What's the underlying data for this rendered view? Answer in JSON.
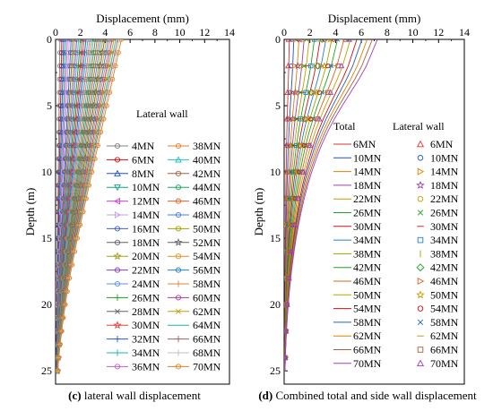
{
  "chart_data": [
    {
      "type": "line",
      "panel": "c",
      "caption_letter": "(c)",
      "caption_text": " lateral wall displacement",
      "xlabel": "Displacement (mm)",
      "ylabel": "Depth (m)",
      "xlim": [
        0,
        14
      ],
      "ylim": [
        0,
        26
      ],
      "y_inverted": true,
      "x_axis_position": "top",
      "xticks": [
        0,
        2,
        4,
        6,
        8,
        10,
        12,
        14
      ],
      "yticks": [
        0,
        5,
        10,
        15,
        20,
        25
      ],
      "grid": false,
      "legend_title": "Lateral wall",
      "legend_columns": 2,
      "legend_placement": "right",
      "depth_points": [
        0,
        1,
        2,
        3,
        4,
        5,
        6,
        7,
        8,
        9,
        10,
        11,
        12,
        13,
        14,
        15,
        16,
        17,
        18,
        19,
        20,
        21,
        22,
        23,
        24,
        25
      ],
      "shape_profile": [
        1.0,
        0.955,
        0.91,
        0.865,
        0.82,
        0.775,
        0.73,
        0.685,
        0.64,
        0.595,
        0.55,
        0.505,
        0.46,
        0.415,
        0.37,
        0.325,
        0.285,
        0.245,
        0.205,
        0.17,
        0.14,
        0.11,
        0.085,
        0.06,
        0.04,
        0.025
      ],
      "series": [
        {
          "name": "4MN",
          "top_displacement": 0.3,
          "color": "#808080",
          "marker": "o"
        },
        {
          "name": "6MN",
          "top_displacement": 0.45,
          "color": "#d01010",
          "marker": "o"
        },
        {
          "name": "8MN",
          "top_displacement": 0.6,
          "color": "#2050d0",
          "marker": "^"
        },
        {
          "name": "10MN",
          "top_displacement": 0.75,
          "color": "#10a080",
          "marker": "v"
        },
        {
          "name": "12MN",
          "top_displacement": 0.9,
          "color": "#d040d0",
          "marker": "<"
        },
        {
          "name": "14MN",
          "top_displacement": 1.05,
          "color": "#c0a0e0",
          "marker": ">"
        },
        {
          "name": "16MN",
          "top_displacement": 1.2,
          "color": "#4060c0",
          "marker": "o"
        },
        {
          "name": "18MN",
          "top_displacement": 1.35,
          "color": "#606060",
          "marker": "o"
        },
        {
          "name": "20MN",
          "top_displacement": 1.5,
          "color": "#a0a020",
          "marker": "*"
        },
        {
          "name": "22MN",
          "top_displacement": 1.65,
          "color": "#8040c0",
          "marker": "o"
        },
        {
          "name": "24MN",
          "top_displacement": 1.8,
          "color": "#6090e0",
          "marker": "o"
        },
        {
          "name": "26MN",
          "top_displacement": 1.95,
          "color": "#20a020",
          "marker": "+"
        },
        {
          "name": "28MN",
          "top_displacement": 2.1,
          "color": "#606060",
          "marker": "x"
        },
        {
          "name": "30MN",
          "top_displacement": 2.25,
          "color": "#e04040",
          "marker": "*"
        },
        {
          "name": "32MN",
          "top_displacement": 2.4,
          "color": "#2060c0",
          "marker": "+"
        },
        {
          "name": "34MN",
          "top_displacement": 2.55,
          "color": "#20b0b0",
          "marker": "+"
        },
        {
          "name": "36MN",
          "top_displacement": 2.7,
          "color": "#c060c0",
          "marker": "o"
        },
        {
          "name": "38MN",
          "top_displacement": 2.85,
          "color": "#e08020",
          "marker": "o"
        },
        {
          "name": "40MN",
          "top_displacement": 3.0,
          "color": "#20c0c0",
          "marker": "^"
        },
        {
          "name": "42MN",
          "top_displacement": 3.15,
          "color": "#a06040",
          "marker": "o"
        },
        {
          "name": "44MN",
          "top_displacement": 3.3,
          "color": "#20a060",
          "marker": "o"
        },
        {
          "name": "46MN",
          "top_displacement": 3.45,
          "color": "#e06020",
          "marker": "o"
        },
        {
          "name": "48MN",
          "top_displacement": 3.6,
          "color": "#4080e0",
          "marker": "o"
        },
        {
          "name": "50MN",
          "top_displacement": 3.75,
          "color": "#a0a000",
          "marker": "o"
        },
        {
          "name": "52MN",
          "top_displacement": 3.9,
          "color": "#606060",
          "marker": "*"
        },
        {
          "name": "54MN",
          "top_displacement": 4.05,
          "color": "#e09020",
          "marker": "o"
        },
        {
          "name": "56MN",
          "top_displacement": 4.2,
          "color": "#2080d0",
          "marker": "o"
        },
        {
          "name": "58MN",
          "top_displacement": 4.35,
          "color": "#e08040",
          "marker": "+"
        },
        {
          "name": "60MN",
          "top_displacement": 4.5,
          "color": "#a040a0",
          "marker": "o"
        },
        {
          "name": "62MN",
          "top_displacement": 4.65,
          "color": "#c0a000",
          "marker": "x"
        },
        {
          "name": "64MN",
          "top_displacement": 4.8,
          "color": "#20b0b0",
          "marker": "none"
        },
        {
          "name": "66MN",
          "top_displacement": 4.95,
          "color": "#a06060",
          "marker": "+"
        },
        {
          "name": "68MN",
          "top_displacement": 5.1,
          "color": "#c0c0c0",
          "marker": "+"
        },
        {
          "name": "70MN",
          "top_displacement": 5.25,
          "color": "#e08020",
          "marker": "o"
        }
      ]
    },
    {
      "type": "line",
      "panel": "d",
      "caption_letter": "(d)",
      "caption_text": " Combined total and side wall displacement",
      "xlabel": "Displacement (mm)",
      "ylabel": "Depth (m)",
      "xlim": [
        0,
        14
      ],
      "ylim": [
        0,
        26
      ],
      "y_inverted": true,
      "x_axis_position": "top",
      "xticks": [
        0,
        2,
        4,
        6,
        8,
        10,
        12,
        14
      ],
      "yticks": [
        0,
        5,
        10,
        15,
        20,
        25
      ],
      "grid": false,
      "legend_title_total": "Total",
      "legend_title_lateral": "Lateral wall",
      "legend_placement": "right",
      "depth_points": [
        0,
        1,
        2,
        3,
        4,
        5,
        6,
        7,
        8,
        9,
        10,
        11,
        12,
        13,
        14,
        15,
        16,
        17,
        18,
        19,
        20,
        21,
        22,
        23,
        24,
        25
      ],
      "shape_profile": [
        1.0,
        0.94,
        0.88,
        0.8,
        0.71,
        0.62,
        0.535,
        0.46,
        0.395,
        0.34,
        0.29,
        0.247,
        0.21,
        0.177,
        0.148,
        0.122,
        0.1,
        0.081,
        0.064,
        0.05,
        0.037,
        0.027,
        0.018,
        0.011,
        0.006,
        0.002
      ],
      "series": [
        {
          "name": "6MN",
          "top_displacement": 0.35,
          "color": "#e03030",
          "marker": "^",
          "lateral_top": 0.3
        },
        {
          "name": "10MN",
          "top_displacement": 0.7,
          "color": "#2050d0",
          "marker": "o",
          "lateral_top": 0.55
        },
        {
          "name": "14MN",
          "top_displacement": 1.1,
          "color": "#e08000",
          "marker": ">",
          "lateral_top": 0.85
        },
        {
          "name": "18MN",
          "top_displacement": 1.5,
          "color": "#a040a0",
          "marker": "*",
          "lateral_top": 1.15
        },
        {
          "name": "22MN",
          "top_displacement": 1.9,
          "color": "#c0a000",
          "marker": "o",
          "lateral_top": 1.4
        },
        {
          "name": "26MN",
          "top_displacement": 2.3,
          "color": "#20a020",
          "marker": "x",
          "lateral_top": 1.7
        },
        {
          "name": "30MN",
          "top_displacement": 2.75,
          "color": "#d01010",
          "marker": "-",
          "lateral_top": 2.0
        },
        {
          "name": "34MN",
          "top_displacement": 3.2,
          "color": "#2080d0",
          "marker": "s",
          "lateral_top": 2.3
        },
        {
          "name": "38MN",
          "top_displacement": 3.65,
          "color": "#a0a000",
          "marker": "|",
          "lateral_top": 2.6
        },
        {
          "name": "42MN",
          "top_displacement": 4.1,
          "color": "#20a020",
          "marker": "d",
          "lateral_top": 2.9
        },
        {
          "name": "46MN",
          "top_displacement": 4.6,
          "color": "#e06020",
          "marker": ">",
          "lateral_top": 3.2
        },
        {
          "name": "50MN",
          "top_displacement": 5.1,
          "color": "#c0a000",
          "marker": "*",
          "lateral_top": 3.5
        },
        {
          "name": "54MN",
          "top_displacement": 5.6,
          "color": "#d01010",
          "marker": "o",
          "lateral_top": 3.8
        },
        {
          "name": "58MN",
          "top_displacement": 6.0,
          "color": "#2060c0",
          "marker": "x",
          "lateral_top": 4.1
        },
        {
          "name": "62MN",
          "top_displacement": 6.4,
          "color": "#e08000",
          "marker": "-",
          "lateral_top": 4.4
        },
        {
          "name": "66MN",
          "top_displacement": 6.8,
          "color": "#a06040",
          "marker": "s",
          "lateral_top": 4.7
        },
        {
          "name": "70MN",
          "top_displacement": 7.2,
          "color": "#a040c0",
          "marker": "^",
          "lateral_top": 5.0
        }
      ]
    }
  ]
}
